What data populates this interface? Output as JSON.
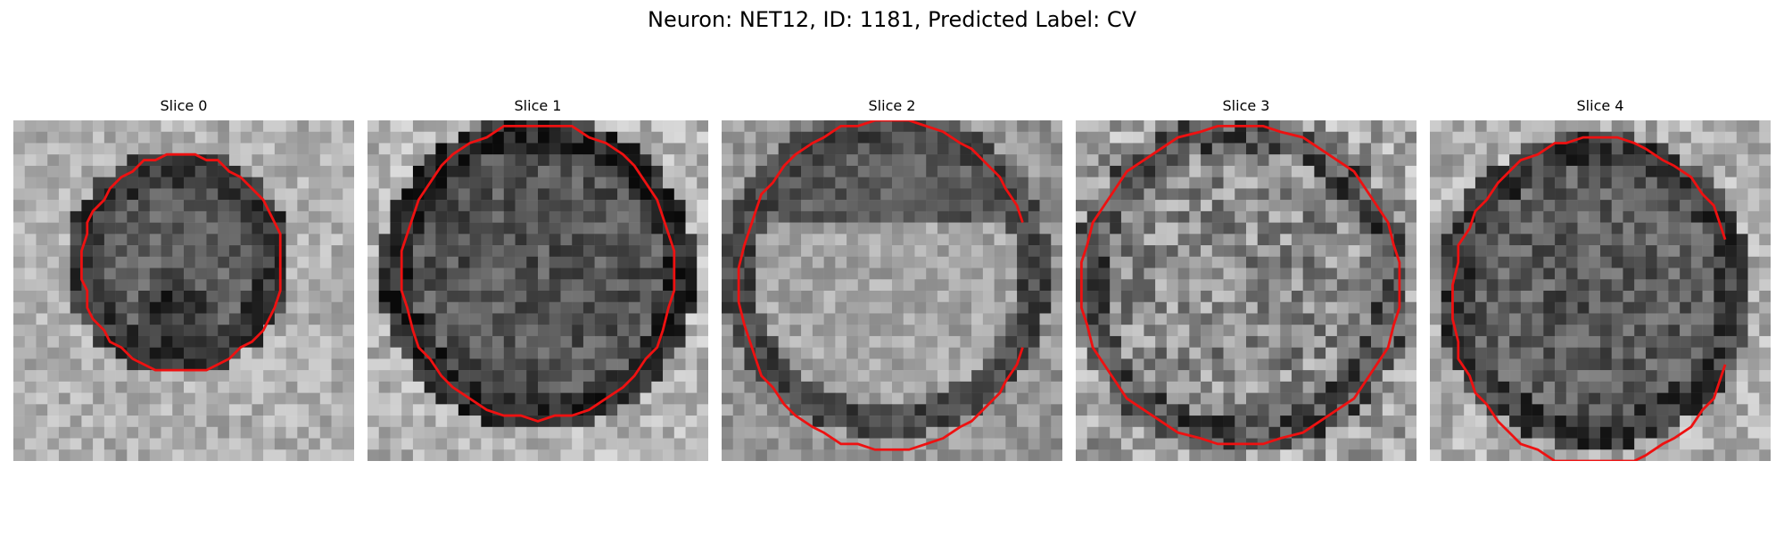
{
  "figure": {
    "title": "Neuron: NET12, ID: 1181, Predicted Label: CV"
  },
  "slices": [
    {
      "label": "Slice 0"
    },
    {
      "label": "Slice 1"
    },
    {
      "label": "Slice 2"
    },
    {
      "label": "Slice 3"
    },
    {
      "label": "Slice 4"
    }
  ],
  "colors": {
    "contour": "#ee1111",
    "background": "#ffffff"
  }
}
